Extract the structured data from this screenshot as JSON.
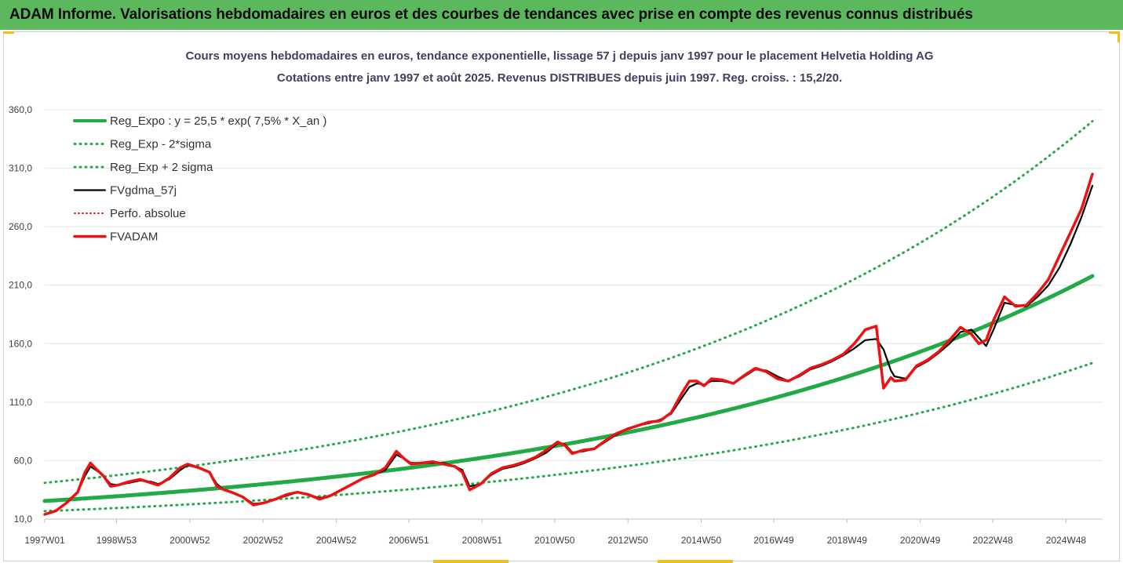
{
  "banner": {
    "title": "ADAM Informe. Valorisations hebdomadaires en euros et des courbes de tendances avec prise en compte des revenus connus distribués"
  },
  "chart_data": {
    "type": "line",
    "title": "Cours moyens hebdomadaires en euros, tendance exponentielle, lissage 57 j depuis janv 1997 pour le placement Helvetia Holding AG",
    "subtitle": "Cotations entre janv 1997 et août 2025. Revenus DISTRIBUES depuis juin 1997. Reg. croiss. : 15,2/20.",
    "xlabel": "",
    "ylabel": "",
    "ylim": [
      10,
      360
    ],
    "yticks": [
      "10,0",
      "60,0",
      "110,0",
      "160,0",
      "210,0",
      "260,0",
      "310,0",
      "360,0"
    ],
    "x_range": [
      1997.0,
      2025.6
    ],
    "xticks": [
      {
        "label": "1997W01",
        "x": 1997.0
      },
      {
        "label": "1998W53",
        "x": 1998.96
      },
      {
        "label": "2000W52",
        "x": 2000.96
      },
      {
        "label": "2002W52",
        "x": 2002.96
      },
      {
        "label": "2004W52",
        "x": 2004.96
      },
      {
        "label": "2006W51",
        "x": 2006.94
      },
      {
        "label": "2008W51",
        "x": 2008.94
      },
      {
        "label": "2010W50",
        "x": 2010.92
      },
      {
        "label": "2012W50",
        "x": 2012.92
      },
      {
        "label": "2014W50",
        "x": 2014.92
      },
      {
        "label": "2016W49",
        "x": 2016.9
      },
      {
        "label": "2018W49",
        "x": 2018.9
      },
      {
        "label": "2020W49",
        "x": 2020.9
      },
      {
        "label": "2022W48",
        "x": 2022.88
      },
      {
        "label": "2024W48",
        "x": 2024.88
      }
    ],
    "grid": true,
    "legend_position": "top-left",
    "series": [
      {
        "name": "Reg_Expo : y = 25,5 * exp( 7,5% *  X_an )",
        "color": "#22aa44",
        "style": "solid-thick",
        "function": {
          "a": 25.5,
          "rate": 0.075,
          "x0": 1997.0
        }
      },
      {
        "name": "Reg_Exp - 2*sigma",
        "color": "#22aa44",
        "style": "dotted",
        "function": {
          "a": 16.8,
          "rate": 0.075,
          "x0": 1997.0
        }
      },
      {
        "name": "Reg_Exp + 2 sigma",
        "color": "#22aa44",
        "style": "dotted",
        "function": {
          "a": 41.0,
          "rate": 0.075,
          "x0": 1997.0
        }
      },
      {
        "name": "FVgdma_57j",
        "color": "#000000",
        "style": "solid",
        "x": [
          1997.0,
          1997.3,
          1997.6,
          1997.9,
          1998.1,
          1998.25,
          1998.4,
          1998.6,
          1998.8,
          1999.0,
          1999.3,
          1999.6,
          1999.9,
          2000.1,
          2000.4,
          2000.7,
          2000.9,
          2001.2,
          2001.5,
          2001.7,
          2001.9,
          2002.1,
          2002.4,
          2002.7,
          2003.0,
          2003.3,
          2003.6,
          2003.9,
          2004.2,
          2004.5,
          2004.8,
          2005.1,
          2005.4,
          2005.7,
          2006.0,
          2006.3,
          2006.6,
          2006.8,
          2007.0,
          2007.3,
          2007.6,
          2007.9,
          2008.2,
          2008.4,
          2008.6,
          2008.9,
          2009.2,
          2009.5,
          2009.8,
          2010.1,
          2010.4,
          2010.7,
          2011.0,
          2011.2,
          2011.4,
          2011.7,
          2012.0,
          2012.3,
          2012.6,
          2012.9,
          2013.2,
          2013.5,
          2013.8,
          2014.1,
          2014.4,
          2014.6,
          2014.8,
          2015.0,
          2015.2,
          2015.5,
          2015.8,
          2016.1,
          2016.4,
          2016.7,
          2017.0,
          2017.3,
          2017.6,
          2017.9,
          2018.2,
          2018.5,
          2018.8,
          2019.1,
          2019.4,
          2019.7,
          2019.9,
          2020.1,
          2020.2,
          2020.5,
          2020.8,
          2021.1,
          2021.4,
          2021.7,
          2022.0,
          2022.3,
          2022.5,
          2022.7,
          2022.9,
          2023.2,
          2023.5,
          2023.8,
          2024.1,
          2024.4,
          2024.7,
          2025.0,
          2025.3,
          2025.6
        ],
        "values": [
          14,
          17,
          24,
          33,
          47,
          55,
          52,
          47,
          40,
          39,
          41,
          43,
          42,
          40,
          44,
          52,
          56,
          54,
          50,
          40,
          35,
          33,
          29,
          23,
          24,
          27,
          30,
          33,
          31,
          28,
          30,
          35,
          40,
          45,
          48,
          52,
          65,
          62,
          58,
          58,
          58,
          58,
          55,
          52,
          38,
          40,
          48,
          53,
          55,
          58,
          62,
          67,
          75,
          74,
          67,
          68,
          70,
          76,
          82,
          87,
          90,
          92,
          95,
          100,
          114,
          123,
          126,
          125,
          128,
          128,
          126,
          132,
          138,
          137,
          132,
          128,
          132,
          138,
          141,
          145,
          150,
          156,
          163,
          164,
          155,
          137,
          132,
          130,
          140,
          145,
          152,
          160,
          170,
          172,
          165,
          158,
          172,
          195,
          193,
          192,
          200,
          210,
          225,
          245,
          268,
          295
        ]
      },
      {
        "name": "Perfo. absolue",
        "color": "#dd2222",
        "style": "dotted",
        "x": [
          1997.0,
          1997.3,
          1997.6,
          1997.9,
          1998.1,
          1998.25,
          1998.4,
          1998.6,
          1998.8,
          1999.0,
          1999.3,
          1999.6,
          1999.9,
          2000.1,
          2000.4,
          2000.7,
          2000.9,
          2001.2,
          2001.5,
          2001.7,
          2001.9,
          2002.1,
          2002.4,
          2002.7,
          2003.0,
          2003.3,
          2003.6,
          2003.9,
          2004.2,
          2004.5,
          2004.8,
          2005.1,
          2005.4,
          2005.7,
          2006.0,
          2006.3,
          2006.6,
          2006.8,
          2007.0,
          2007.3,
          2007.6,
          2007.9,
          2008.2,
          2008.4,
          2008.6,
          2008.9,
          2009.2,
          2009.5,
          2009.8,
          2010.1,
          2010.4,
          2010.7,
          2011.0,
          2011.2,
          2011.4,
          2011.7,
          2012.0,
          2012.3,
          2012.6,
          2012.9,
          2013.2,
          2013.5,
          2013.8,
          2014.1,
          2014.4,
          2014.6,
          2014.8,
          2015.0,
          2015.2,
          2015.5,
          2015.8,
          2016.1,
          2016.4,
          2016.7,
          2017.0,
          2017.3,
          2017.6,
          2017.9,
          2018.2,
          2018.5,
          2018.8,
          2019.1,
          2019.4,
          2019.7,
          2019.9,
          2020.1,
          2020.2,
          2020.5,
          2020.8,
          2021.1,
          2021.4,
          2021.7,
          2022.0,
          2022.3,
          2022.5,
          2022.7,
          2022.9,
          2023.2,
          2023.5,
          2023.8,
          2024.1,
          2024.4,
          2024.7,
          2025.0,
          2025.3,
          2025.6
        ],
        "values": [
          14,
          17,
          24,
          33,
          50,
          58,
          53,
          47,
          38,
          39,
          42,
          44,
          41,
          39,
          45,
          54,
          57,
          54,
          50,
          38,
          35,
          33,
          29,
          22,
          24,
          27,
          31,
          33,
          31,
          27,
          30,
          35,
          40,
          45,
          48,
          54,
          68,
          62,
          57,
          58,
          59,
          57,
          55,
          50,
          35,
          40,
          49,
          54,
          56,
          59,
          63,
          69,
          76,
          73,
          66,
          69,
          70,
          77,
          83,
          87,
          90,
          93,
          94,
          101,
          118,
          128,
          128,
          124,
          130,
          129,
          126,
          133,
          139,
          136,
          130,
          128,
          133,
          139,
          142,
          146,
          151,
          160,
          172,
          175,
          122,
          131,
          128,
          129,
          141,
          146,
          153,
          163,
          174,
          168,
          160,
          163,
          180,
          200,
          192,
          193,
          203,
          215,
          235,
          255,
          275,
          305
        ]
      },
      {
        "name": "FVADAM",
        "color": "#ee1111",
        "style": "solid-thick",
        "x": [
          1997.0,
          1997.3,
          1997.6,
          1997.9,
          1998.1,
          1998.25,
          1998.4,
          1998.6,
          1998.8,
          1999.0,
          1999.3,
          1999.6,
          1999.9,
          2000.1,
          2000.4,
          2000.7,
          2000.9,
          2001.2,
          2001.5,
          2001.7,
          2001.9,
          2002.1,
          2002.4,
          2002.7,
          2003.0,
          2003.3,
          2003.6,
          2003.9,
          2004.2,
          2004.5,
          2004.8,
          2005.1,
          2005.4,
          2005.7,
          2006.0,
          2006.3,
          2006.6,
          2006.8,
          2007.0,
          2007.3,
          2007.6,
          2007.9,
          2008.2,
          2008.4,
          2008.6,
          2008.9,
          2009.2,
          2009.5,
          2009.8,
          2010.1,
          2010.4,
          2010.7,
          2011.0,
          2011.2,
          2011.4,
          2011.7,
          2012.0,
          2012.3,
          2012.6,
          2012.9,
          2013.2,
          2013.5,
          2013.8,
          2014.1,
          2014.4,
          2014.6,
          2014.8,
          2015.0,
          2015.2,
          2015.5,
          2015.8,
          2016.1,
          2016.4,
          2016.7,
          2017.0,
          2017.3,
          2017.6,
          2017.9,
          2018.2,
          2018.5,
          2018.8,
          2019.1,
          2019.4,
          2019.7,
          2019.9,
          2020.1,
          2020.2,
          2020.5,
          2020.8,
          2021.1,
          2021.4,
          2021.7,
          2022.0,
          2022.3,
          2022.5,
          2022.7,
          2022.9,
          2023.2,
          2023.5,
          2023.8,
          2024.1,
          2024.4,
          2024.7,
          2025.0,
          2025.3,
          2025.6
        ],
        "values": [
          14,
          17,
          24,
          33,
          50,
          58,
          53,
          47,
          38,
          39,
          42,
          44,
          41,
          39,
          45,
          54,
          57,
          54,
          50,
          38,
          35,
          33,
          29,
          22,
          24,
          27,
          31,
          33,
          31,
          27,
          30,
          35,
          40,
          45,
          48,
          54,
          68,
          62,
          57,
          58,
          59,
          57,
          55,
          50,
          35,
          40,
          49,
          54,
          56,
          59,
          63,
          69,
          76,
          73,
          66,
          69,
          70,
          77,
          83,
          87,
          90,
          93,
          94,
          101,
          118,
          128,
          128,
          124,
          130,
          129,
          126,
          133,
          139,
          136,
          130,
          128,
          133,
          139,
          142,
          146,
          151,
          160,
          172,
          175,
          122,
          131,
          128,
          129,
          141,
          146,
          153,
          163,
          174,
          168,
          160,
          163,
          180,
          200,
          192,
          193,
          203,
          215,
          235,
          255,
          275,
          305
        ]
      }
    ]
  }
}
